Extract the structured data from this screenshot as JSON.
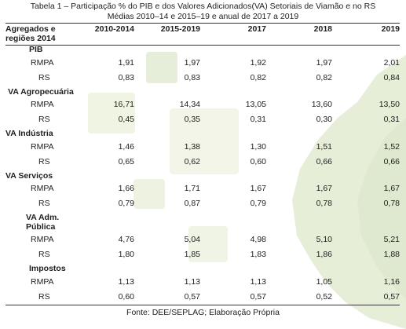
{
  "caption_line1": "Tabela 1 – Participação % do PIB e dos Valores Adicionados(VA) Setoriais de Viamão e no RS",
  "caption_line2": "Médias 2010–14 e 2015–19 e anual de 2017 a 2019",
  "header": [
    "Agregados e regiões 2014",
    "2010-2014",
    "2015-2019",
    "2017",
    "2018",
    "2019"
  ],
  "groups": [
    {
      "name": "PIB",
      "rows": [
        {
          "label": "RMPA",
          "values": [
            "1,91",
            "1,97",
            "1,92",
            "1,97",
            "2,01"
          ]
        },
        {
          "label": "RS",
          "values": [
            "0,83",
            "0,83",
            "0,82",
            "0,82",
            "0,84"
          ]
        }
      ]
    },
    {
      "name": "VA Agropecuária",
      "rows": [
        {
          "label": "RMPA",
          "values": [
            "16,71",
            "14,34",
            "13,05",
            "13,60",
            "13,50"
          ]
        },
        {
          "label": "RS",
          "values": [
            "0,45",
            "0,35",
            "0,31",
            "0,30",
            "0,31"
          ]
        }
      ]
    },
    {
      "name": "VA Indústria",
      "rows": [
        {
          "label": "RMPA",
          "values": [
            "1,46",
            "1,38",
            "1,30",
            "1,51",
            "1,52"
          ]
        },
        {
          "label": "RS",
          "values": [
            "0,65",
            "0,62",
            "0,60",
            "0,66",
            "0,66"
          ]
        }
      ]
    },
    {
      "name": "VA Serviços",
      "rows": [
        {
          "label": "RMPA",
          "values": [
            "1,66",
            "1,71",
            "1,67",
            "1,67",
            "1,67"
          ]
        },
        {
          "label": "RS",
          "values": [
            "0,79",
            "0,87",
            "0,79",
            "0,78",
            "0,78"
          ]
        }
      ]
    },
    {
      "name": "VA Adm. Pública",
      "rows": [
        {
          "label": "RMPA",
          "values": [
            "4,76",
            "5,04",
            "4,98",
            "5,10",
            "5,21"
          ]
        },
        {
          "label": "RS",
          "values": [
            "1,80",
            "1,85",
            "1,83",
            "1,86",
            "1,88"
          ]
        }
      ]
    },
    {
      "name": "Impostos",
      "rows": [
        {
          "label": "RMPA",
          "values": [
            "1,13",
            "1,13",
            "1,13",
            "1,05",
            "1,16"
          ]
        },
        {
          "label": "RS",
          "values": [
            "0,60",
            "0,57",
            "0,57",
            "0,52",
            "0,57"
          ]
        }
      ]
    }
  ],
  "footer": "Fonte: DEE/SEPLAG; Elaboração Própria",
  "colors": {
    "bg_green": "#e8efd9",
    "bg_square": "#f1f4e6",
    "border": "#333333"
  }
}
